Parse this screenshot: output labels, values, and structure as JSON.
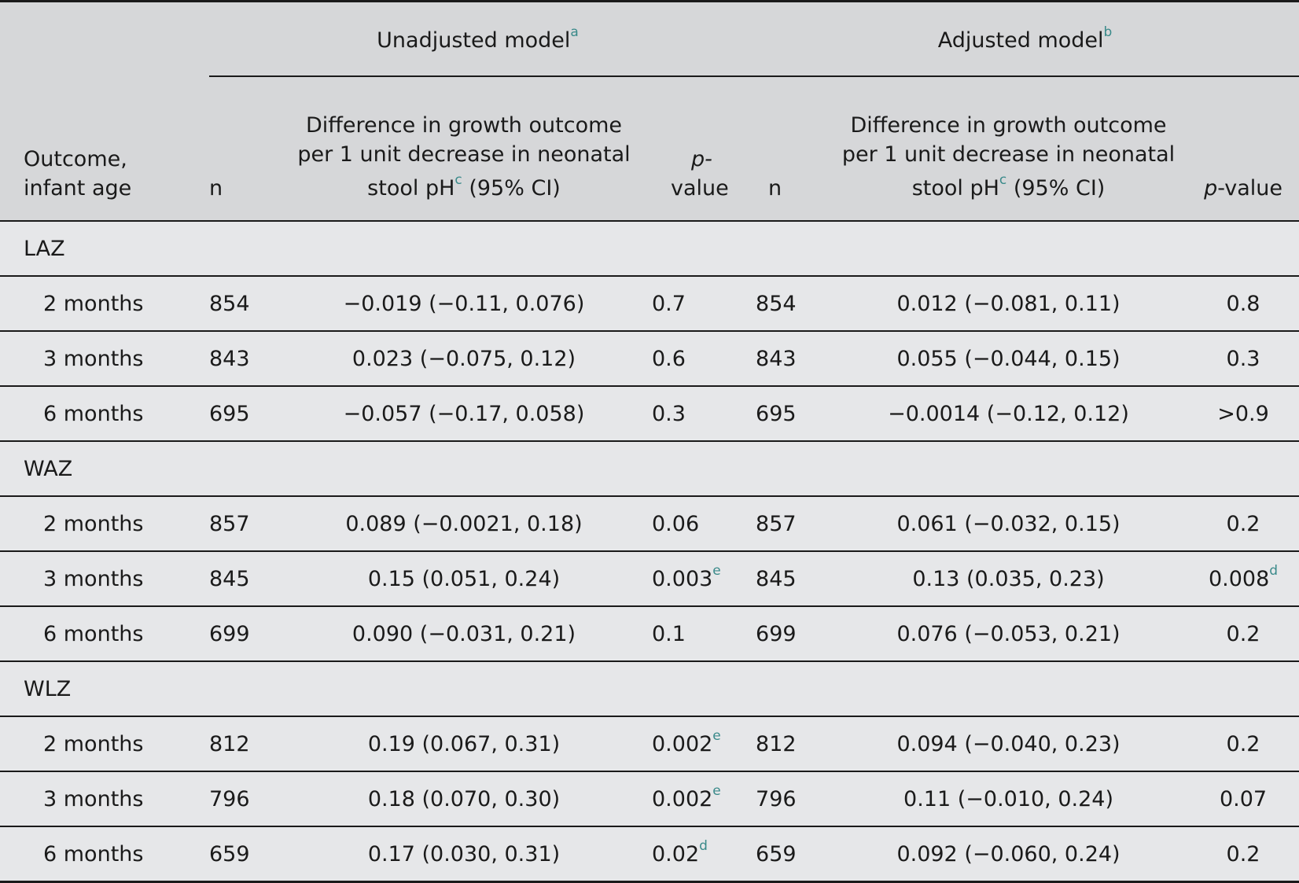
{
  "table": {
    "group_unadjusted": "Unadjusted model",
    "group_unadjusted_sup": "a",
    "group_adjusted": "Adjusted model",
    "group_adjusted_sup": "b",
    "col_outcome_line1": "Outcome,",
    "col_outcome_line2": "infant age",
    "col_n": "n",
    "col_diff_line1": "Difference in growth outcome",
    "col_diff_line2": "per 1 unit decrease in neonatal",
    "col_diff_line3a": "stool pH",
    "col_diff_sup": "c",
    "col_diff_line3b": " (95% CI)",
    "col_p_line1": "p-",
    "col_p_line2": "value",
    "col_p_adj_italic": "p",
    "col_p_adj_rest": "-value",
    "sections": [
      {
        "label": "LAZ",
        "rows": [
          {
            "age": "2 months",
            "n1": "854",
            "diff1": "−0.019 (−0.11, 0.076)",
            "p1": "0.7",
            "p1_sup": "",
            "n2": "854",
            "diff2": "0.012 (−0.081, 0.11)",
            "p2": "0.8",
            "p2_sup": ""
          },
          {
            "age": "3 months",
            "n1": "843",
            "diff1": "0.023 (−0.075, 0.12)",
            "p1": "0.6",
            "p1_sup": "",
            "n2": "843",
            "diff2": "0.055 (−0.044, 0.15)",
            "p2": "0.3",
            "p2_sup": ""
          },
          {
            "age": "6 months",
            "n1": "695",
            "diff1": "−0.057 (−0.17, 0.058)",
            "p1": "0.3",
            "p1_sup": "",
            "n2": "695",
            "diff2": "−0.0014 (−0.12, 0.12)",
            "p2": ">0.9",
            "p2_sup": ""
          }
        ]
      },
      {
        "label": "WAZ",
        "rows": [
          {
            "age": "2 months",
            "n1": "857",
            "diff1": "0.089 (−0.0021, 0.18)",
            "p1": "0.06",
            "p1_sup": "",
            "n2": "857",
            "diff2": "0.061 (−0.032, 0.15)",
            "p2": "0.2",
            "p2_sup": ""
          },
          {
            "age": "3 months",
            "n1": "845",
            "diff1": "0.15 (0.051, 0.24)",
            "p1": "0.003",
            "p1_sup": "e",
            "n2": "845",
            "diff2": "0.13 (0.035, 0.23)",
            "p2": "0.008",
            "p2_sup": "d"
          },
          {
            "age": "6 months",
            "n1": "699",
            "diff1": "0.090 (−0.031, 0.21)",
            "p1": "0.1",
            "p1_sup": "",
            "n2": "699",
            "diff2": "0.076 (−0.053, 0.21)",
            "p2": "0.2",
            "p2_sup": ""
          }
        ]
      },
      {
        "label": "WLZ",
        "rows": [
          {
            "age": "2 months",
            "n1": "812",
            "diff1": "0.19 (0.067, 0.31)",
            "p1": "0.002",
            "p1_sup": "e",
            "n2": "812",
            "diff2": "0.094 (−0.040, 0.23)",
            "p2": "0.2",
            "p2_sup": ""
          },
          {
            "age": "3 months",
            "n1": "796",
            "diff1": "0.18 (0.070, 0.30)",
            "p1": "0.002",
            "p1_sup": "e",
            "n2": "796",
            "diff2": "0.11 (−0.010, 0.24)",
            "p2": "0.07",
            "p2_sup": ""
          },
          {
            "age": "6 months",
            "n1": "659",
            "diff1": "0.17 (0.030, 0.31)",
            "p1": "0.02",
            "p1_sup": "d",
            "n2": "659",
            "diff2": "0.092 (−0.060, 0.24)",
            "p2": "0.2",
            "p2_sup": ""
          }
        ]
      }
    ]
  },
  "colors": {
    "header_bg": "#d6d7d9",
    "body_bg": "#e6e7e9",
    "footnote_marker": "#3a8a8a",
    "rule": "#1a1a1a"
  }
}
